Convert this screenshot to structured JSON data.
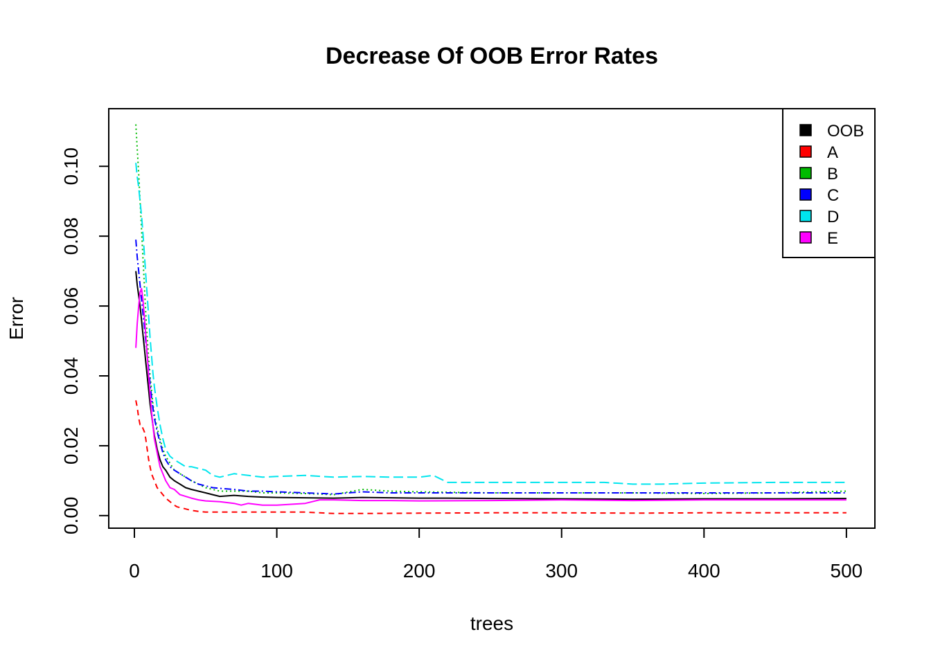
{
  "chart_data": {
    "type": "line",
    "title": "Decrease Of OOB Error Rates",
    "xlabel": "trees",
    "ylabel": "Error",
    "xlim": [
      -18,
      520
    ],
    "ylim": [
      -0.0036,
      0.1165
    ],
    "x_ticks": [
      0,
      100,
      200,
      300,
      400,
      500
    ],
    "x_tick_labels": [
      "0",
      "100",
      "200",
      "300",
      "400",
      "500"
    ],
    "y_ticks": [
      0.0,
      0.02,
      0.04,
      0.06,
      0.08,
      0.1
    ],
    "y_tick_labels": [
      "0.00",
      "0.02",
      "0.04",
      "0.06",
      "0.08",
      "0.10"
    ],
    "grid": false,
    "legend": {
      "position": "top-right",
      "entries": [
        "OOB",
        "A",
        "B",
        "C",
        "D",
        "E"
      ]
    },
    "series": [
      {
        "name": "OOB",
        "color": "#000000",
        "dash": "",
        "points": [
          [
            1,
            0.07
          ],
          [
            2,
            0.066
          ],
          [
            3,
            0.063
          ],
          [
            4,
            0.06
          ],
          [
            5,
            0.056
          ],
          [
            6,
            0.052
          ],
          [
            7,
            0.048
          ],
          [
            8,
            0.044
          ],
          [
            9,
            0.04
          ],
          [
            10,
            0.036
          ],
          [
            11,
            0.032
          ],
          [
            12,
            0.029
          ],
          [
            13,
            0.026
          ],
          [
            14,
            0.023
          ],
          [
            16,
            0.019
          ],
          [
            18,
            0.016
          ],
          [
            20,
            0.014
          ],
          [
            22,
            0.013
          ],
          [
            25,
            0.011
          ],
          [
            28,
            0.01
          ],
          [
            32,
            0.009
          ],
          [
            36,
            0.008
          ],
          [
            40,
            0.0075
          ],
          [
            45,
            0.007
          ],
          [
            50,
            0.0065
          ],
          [
            55,
            0.006
          ],
          [
            60,
            0.0055
          ],
          [
            70,
            0.0058
          ],
          [
            80,
            0.0055
          ],
          [
            90,
            0.0053
          ],
          [
            100,
            0.0052
          ],
          [
            120,
            0.0051
          ],
          [
            140,
            0.005
          ],
          [
            160,
            0.0052
          ],
          [
            180,
            0.0051
          ],
          [
            200,
            0.005
          ],
          [
            220,
            0.005
          ],
          [
            250,
            0.0049
          ],
          [
            300,
            0.0048
          ],
          [
            350,
            0.0047
          ],
          [
            400,
            0.0048
          ],
          [
            450,
            0.0048
          ],
          [
            500,
            0.0049
          ]
        ]
      },
      {
        "name": "A",
        "color": "#ff0000",
        "dash": "8,6",
        "points": [
          [
            1,
            0.033
          ],
          [
            2,
            0.031
          ],
          [
            3,
            0.028
          ],
          [
            4,
            0.026
          ],
          [
            5,
            0.026
          ],
          [
            6,
            0.025
          ],
          [
            7,
            0.024
          ],
          [
            8,
            0.022
          ],
          [
            9,
            0.019
          ],
          [
            10,
            0.016
          ],
          [
            11,
            0.014
          ],
          [
            12,
            0.012
          ],
          [
            14,
            0.01
          ],
          [
            16,
            0.008
          ],
          [
            18,
            0.007
          ],
          [
            20,
            0.006
          ],
          [
            22,
            0.005
          ],
          [
            25,
            0.004
          ],
          [
            28,
            0.003
          ],
          [
            30,
            0.0025
          ],
          [
            35,
            0.002
          ],
          [
            40,
            0.0015
          ],
          [
            45,
            0.0012
          ],
          [
            50,
            0.001
          ],
          [
            60,
            0.001
          ],
          [
            80,
            0.001
          ],
          [
            100,
            0.001
          ],
          [
            120,
            0.001
          ],
          [
            130,
            0.0008
          ],
          [
            140,
            0.0006
          ],
          [
            160,
            0.0006
          ],
          [
            200,
            0.0007
          ],
          [
            250,
            0.0008
          ],
          [
            300,
            0.0008
          ],
          [
            350,
            0.0007
          ],
          [
            400,
            0.0008
          ],
          [
            450,
            0.0008
          ],
          [
            500,
            0.0008
          ]
        ]
      },
      {
        "name": "B",
        "color": "#00bb00",
        "dash": "2,4",
        "points": [
          [
            1,
            0.112
          ],
          [
            2,
            0.105
          ],
          [
            3,
            0.098
          ],
          [
            4,
            0.09
          ],
          [
            5,
            0.082
          ],
          [
            6,
            0.074
          ],
          [
            7,
            0.066
          ],
          [
            8,
            0.058
          ],
          [
            9,
            0.051
          ],
          [
            10,
            0.045
          ],
          [
            11,
            0.04
          ],
          [
            12,
            0.036
          ],
          [
            13,
            0.032
          ],
          [
            14,
            0.029
          ],
          [
            16,
            0.025
          ],
          [
            18,
            0.022
          ],
          [
            20,
            0.019
          ],
          [
            22,
            0.017
          ],
          [
            25,
            0.015
          ],
          [
            28,
            0.013
          ],
          [
            32,
            0.012
          ],
          [
            36,
            0.011
          ],
          [
            40,
            0.01
          ],
          [
            45,
            0.009
          ],
          [
            50,
            0.008
          ],
          [
            55,
            0.0075
          ],
          [
            60,
            0.007
          ],
          [
            70,
            0.007
          ],
          [
            80,
            0.007
          ],
          [
            90,
            0.0065
          ],
          [
            100,
            0.0065
          ],
          [
            120,
            0.0063
          ],
          [
            140,
            0.006
          ],
          [
            160,
            0.0075
          ],
          [
            180,
            0.007
          ],
          [
            200,
            0.0068
          ],
          [
            250,
            0.0065
          ],
          [
            300,
            0.0065
          ],
          [
            350,
            0.0065
          ],
          [
            400,
            0.0063
          ],
          [
            450,
            0.0065
          ],
          [
            500,
            0.007
          ]
        ]
      },
      {
        "name": "C",
        "color": "#0000ff",
        "dash": "10,4,2,4",
        "points": [
          [
            1,
            0.079
          ],
          [
            2,
            0.074
          ],
          [
            3,
            0.07
          ],
          [
            4,
            0.066
          ],
          [
            5,
            0.062
          ],
          [
            6,
            0.058
          ],
          [
            7,
            0.054
          ],
          [
            8,
            0.05
          ],
          [
            9,
            0.046
          ],
          [
            10,
            0.042
          ],
          [
            11,
            0.038
          ],
          [
            12,
            0.034
          ],
          [
            13,
            0.031
          ],
          [
            14,
            0.028
          ],
          [
            16,
            0.024
          ],
          [
            18,
            0.021
          ],
          [
            20,
            0.018
          ],
          [
            22,
            0.016
          ],
          [
            25,
            0.014
          ],
          [
            28,
            0.013
          ],
          [
            32,
            0.012
          ],
          [
            36,
            0.011
          ],
          [
            40,
            0.01
          ],
          [
            45,
            0.009
          ],
          [
            50,
            0.0085
          ],
          [
            55,
            0.008
          ],
          [
            60,
            0.0078
          ],
          [
            70,
            0.0075
          ],
          [
            80,
            0.007
          ],
          [
            90,
            0.007
          ],
          [
            100,
            0.0068
          ],
          [
            120,
            0.0065
          ],
          [
            140,
            0.0062
          ],
          [
            160,
            0.0068
          ],
          [
            180,
            0.0065
          ],
          [
            200,
            0.0065
          ],
          [
            250,
            0.0065
          ],
          [
            300,
            0.0065
          ],
          [
            350,
            0.0065
          ],
          [
            400,
            0.0065
          ],
          [
            450,
            0.0065
          ],
          [
            500,
            0.0065
          ]
        ]
      },
      {
        "name": "D",
        "color": "#00e5ee",
        "dash": "14,6",
        "points": [
          [
            1,
            0.101
          ],
          [
            2,
            0.097
          ],
          [
            3,
            0.094
          ],
          [
            4,
            0.09
          ],
          [
            5,
            0.086
          ],
          [
            6,
            0.081
          ],
          [
            7,
            0.075
          ],
          [
            8,
            0.069
          ],
          [
            9,
            0.063
          ],
          [
            10,
            0.057
          ],
          [
            11,
            0.051
          ],
          [
            12,
            0.046
          ],
          [
            13,
            0.041
          ],
          [
            14,
            0.037
          ],
          [
            16,
            0.031
          ],
          [
            18,
            0.026
          ],
          [
            20,
            0.022
          ],
          [
            22,
            0.019
          ],
          [
            25,
            0.017
          ],
          [
            28,
            0.016
          ],
          [
            32,
            0.015
          ],
          [
            36,
            0.014
          ],
          [
            40,
            0.014
          ],
          [
            45,
            0.0135
          ],
          [
            50,
            0.013
          ],
          [
            55,
            0.0115
          ],
          [
            60,
            0.011
          ],
          [
            70,
            0.012
          ],
          [
            80,
            0.0115
          ],
          [
            90,
            0.011
          ],
          [
            100,
            0.0112
          ],
          [
            120,
            0.0115
          ],
          [
            140,
            0.011
          ],
          [
            160,
            0.0112
          ],
          [
            180,
            0.011
          ],
          [
            200,
            0.011
          ],
          [
            210,
            0.0115
          ],
          [
            220,
            0.0095
          ],
          [
            250,
            0.0095
          ],
          [
            300,
            0.0095
          ],
          [
            330,
            0.0095
          ],
          [
            350,
            0.009
          ],
          [
            370,
            0.009
          ],
          [
            400,
            0.0093
          ],
          [
            450,
            0.0095
          ],
          [
            500,
            0.0095
          ]
        ]
      },
      {
        "name": "E",
        "color": "#ff00ff",
        "dash": "",
        "points": [
          [
            1,
            0.048
          ],
          [
            2,
            0.055
          ],
          [
            3,
            0.06
          ],
          [
            4,
            0.064
          ],
          [
            5,
            0.065
          ],
          [
            6,
            0.062
          ],
          [
            7,
            0.057
          ],
          [
            8,
            0.052
          ],
          [
            9,
            0.046
          ],
          [
            10,
            0.04
          ],
          [
            11,
            0.035
          ],
          [
            12,
            0.03
          ],
          [
            13,
            0.026
          ],
          [
            14,
            0.022
          ],
          [
            16,
            0.018
          ],
          [
            18,
            0.014
          ],
          [
            20,
            0.012
          ],
          [
            22,
            0.01
          ],
          [
            25,
            0.008
          ],
          [
            28,
            0.0075
          ],
          [
            32,
            0.006
          ],
          [
            36,
            0.0055
          ],
          [
            40,
            0.005
          ],
          [
            45,
            0.0045
          ],
          [
            50,
            0.0042
          ],
          [
            60,
            0.004
          ],
          [
            70,
            0.0035
          ],
          [
            75,
            0.003
          ],
          [
            80,
            0.0035
          ],
          [
            90,
            0.003
          ],
          [
            100,
            0.003
          ],
          [
            120,
            0.0035
          ],
          [
            130,
            0.0045
          ],
          [
            140,
            0.0045
          ],
          [
            160,
            0.0043
          ],
          [
            180,
            0.0043
          ],
          [
            200,
            0.0042
          ],
          [
            250,
            0.0043
          ],
          [
            300,
            0.0045
          ],
          [
            350,
            0.0043
          ],
          [
            400,
            0.0045
          ],
          [
            450,
            0.0045
          ],
          [
            500,
            0.0045
          ]
        ]
      }
    ]
  }
}
